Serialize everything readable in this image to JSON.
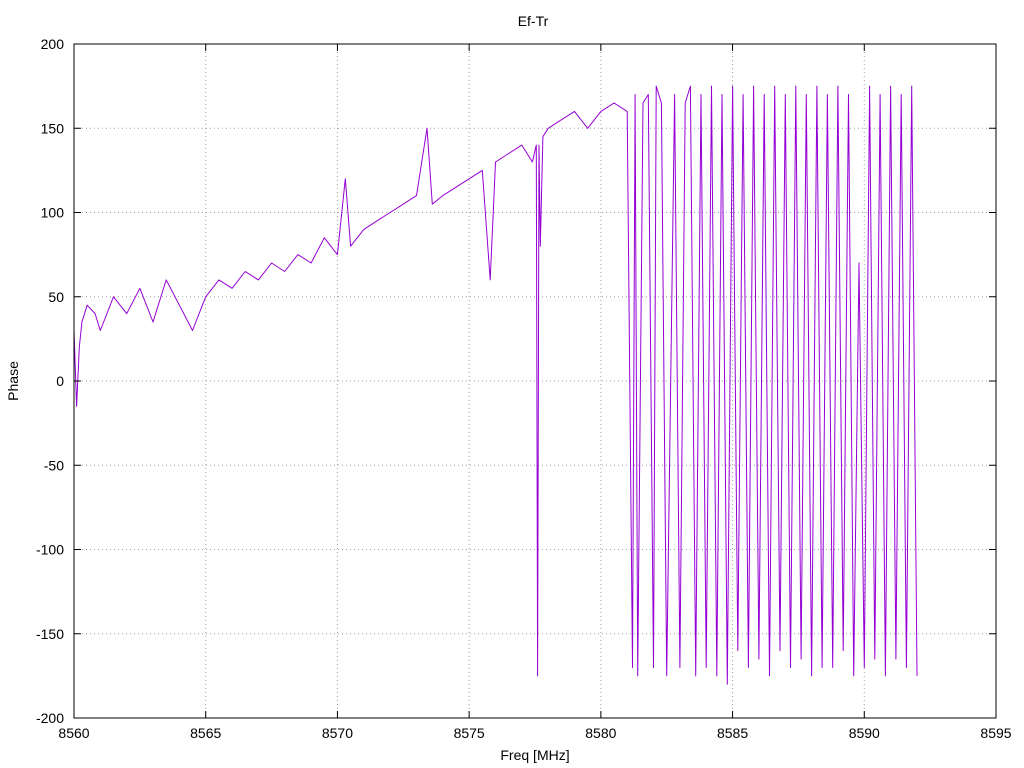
{
  "chart_data": {
    "type": "line",
    "title": "Ef-Tr",
    "xlabel": "Freq [MHz]",
    "ylabel": "Phase",
    "xlim": [
      8560,
      8595
    ],
    "ylim": [
      -200,
      200
    ],
    "xticks": [
      8560,
      8565,
      8570,
      8575,
      8580,
      8585,
      8590,
      8595
    ],
    "yticks": [
      -200,
      -150,
      -100,
      -50,
      0,
      50,
      100,
      150,
      200
    ],
    "grid": true,
    "series": [
      {
        "color": "#9400d3",
        "x": [
          8560.0,
          8560.1,
          8560.2,
          8560.3,
          8560.5,
          8560.8,
          8561.0,
          8561.5,
          8562.0,
          8562.5,
          8563.0,
          8563.5,
          8564.0,
          8564.5,
          8565.0,
          8565.5,
          8566.0,
          8566.5,
          8567.0,
          8567.5,
          8568.0,
          8568.5,
          8569.0,
          8569.5,
          8570.0,
          8570.3,
          8570.5,
          8571.0,
          8571.5,
          8572.0,
          8572.5,
          8573.0,
          8573.4,
          8573.6,
          8574.0,
          8574.5,
          8575.0,
          8575.5,
          8575.8,
          8576.0,
          8576.5,
          8577.0,
          8577.4,
          8577.55,
          8577.6,
          8577.65,
          8577.7,
          8577.8,
          8578.0,
          8578.5,
          8579.0,
          8579.5,
          8580.0,
          8580.5,
          8581.0,
          8581.2,
          8581.3,
          8581.4,
          8581.6,
          8581.8,
          8582.0,
          8582.1,
          8582.3,
          8582.5,
          8582.8,
          8583.0,
          8583.2,
          8583.4,
          8583.6,
          8583.8,
          8584.0,
          8584.2,
          8584.4,
          8584.6,
          8584.8,
          8585.0,
          8585.2,
          8585.4,
          8585.6,
          8585.8,
          8586.0,
          8586.2,
          8586.4,
          8586.6,
          8586.8,
          8587.0,
          8587.2,
          8587.4,
          8587.6,
          8587.8,
          8588.0,
          8588.2,
          8588.4,
          8588.6,
          8588.8,
          8589.0,
          8589.2,
          8589.4,
          8589.6,
          8589.8,
          8590.0,
          8590.2,
          8590.4,
          8590.6,
          8590.8,
          8591.0,
          8591.2,
          8591.4,
          8591.6,
          8591.8,
          8592.0
        ],
        "y": [
          30,
          -15,
          20,
          35,
          45,
          40,
          30,
          50,
          40,
          55,
          35,
          60,
          45,
          30,
          50,
          60,
          55,
          65,
          60,
          70,
          65,
          75,
          70,
          85,
          75,
          120,
          80,
          90,
          95,
          100,
          105,
          110,
          150,
          105,
          110,
          115,
          120,
          125,
          60,
          130,
          135,
          140,
          130,
          140,
          -175,
          140,
          80,
          145,
          150,
          155,
          160,
          150,
          160,
          165,
          160,
          -170,
          170,
          -175,
          165,
          170,
          -170,
          175,
          165,
          -175,
          170,
          -170,
          165,
          175,
          -175,
          170,
          -170,
          175,
          -175,
          170,
          -180,
          175,
          -160,
          170,
          -170,
          175,
          -165,
          170,
          -175,
          175,
          -160,
          170,
          -170,
          175,
          -165,
          170,
          -175,
          175,
          -170,
          170,
          -170,
          175,
          -160,
          170,
          -175,
          70,
          -170,
          175,
          -165,
          170,
          -175,
          175,
          -165,
          170,
          -170,
          175,
          -175
        ]
      }
    ]
  }
}
